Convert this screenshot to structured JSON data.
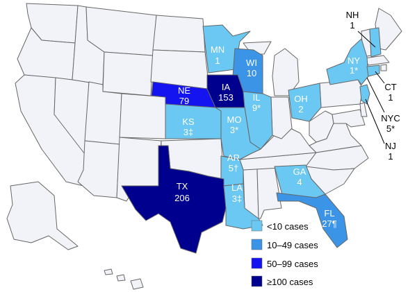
{
  "colors": {
    "no_cases": "#f2f3f8",
    "lt10": "#6bc8f2",
    "c10_49": "#3b94e6",
    "c50_99": "#1414f0",
    "c100plus": "#00008f",
    "border": "#666666"
  },
  "legend": [
    {
      "label": "<10 cases",
      "color_key": "lt10"
    },
    {
      "label": "10–49 cases",
      "color_key": "c10_49"
    },
    {
      "label": "50–99 cases",
      "color_key": "c50_99"
    },
    {
      "label": "≥100 cases",
      "color_key": "c100plus"
    }
  ],
  "states": [
    {
      "abbr": "MN",
      "count": "1",
      "category": "lt10"
    },
    {
      "abbr": "WI",
      "count": "10",
      "category": "c10_49"
    },
    {
      "abbr": "NE",
      "count": "79",
      "category": "c50_99"
    },
    {
      "abbr": "IA",
      "count": "153",
      "category": "c100plus"
    },
    {
      "abbr": "IL",
      "count": "9*",
      "category": "lt10"
    },
    {
      "abbr": "OH",
      "count": "2",
      "category": "lt10"
    },
    {
      "abbr": "KS",
      "count": "3‡",
      "category": "lt10"
    },
    {
      "abbr": "MO",
      "count": "3*",
      "category": "lt10"
    },
    {
      "abbr": "AR",
      "count": "5†",
      "category": "lt10"
    },
    {
      "abbr": "TX",
      "count": "206",
      "category": "c100plus"
    },
    {
      "abbr": "LA",
      "count": "3‡",
      "category": "lt10"
    },
    {
      "abbr": "GA",
      "count": "4",
      "category": "lt10"
    },
    {
      "abbr": "FL",
      "count": "27¶",
      "category": "c10_49"
    },
    {
      "abbr": "NY",
      "count": "1*",
      "category": "lt10"
    }
  ],
  "callouts": [
    {
      "abbr": "NH",
      "count": "1",
      "category": "lt10"
    },
    {
      "abbr": "CT",
      "count": "1",
      "category": "lt10"
    },
    {
      "abbr": "NYC",
      "count": "5*",
      "category": "lt10"
    },
    {
      "abbr": "NJ",
      "count": "1",
      "category": "lt10"
    }
  ]
}
